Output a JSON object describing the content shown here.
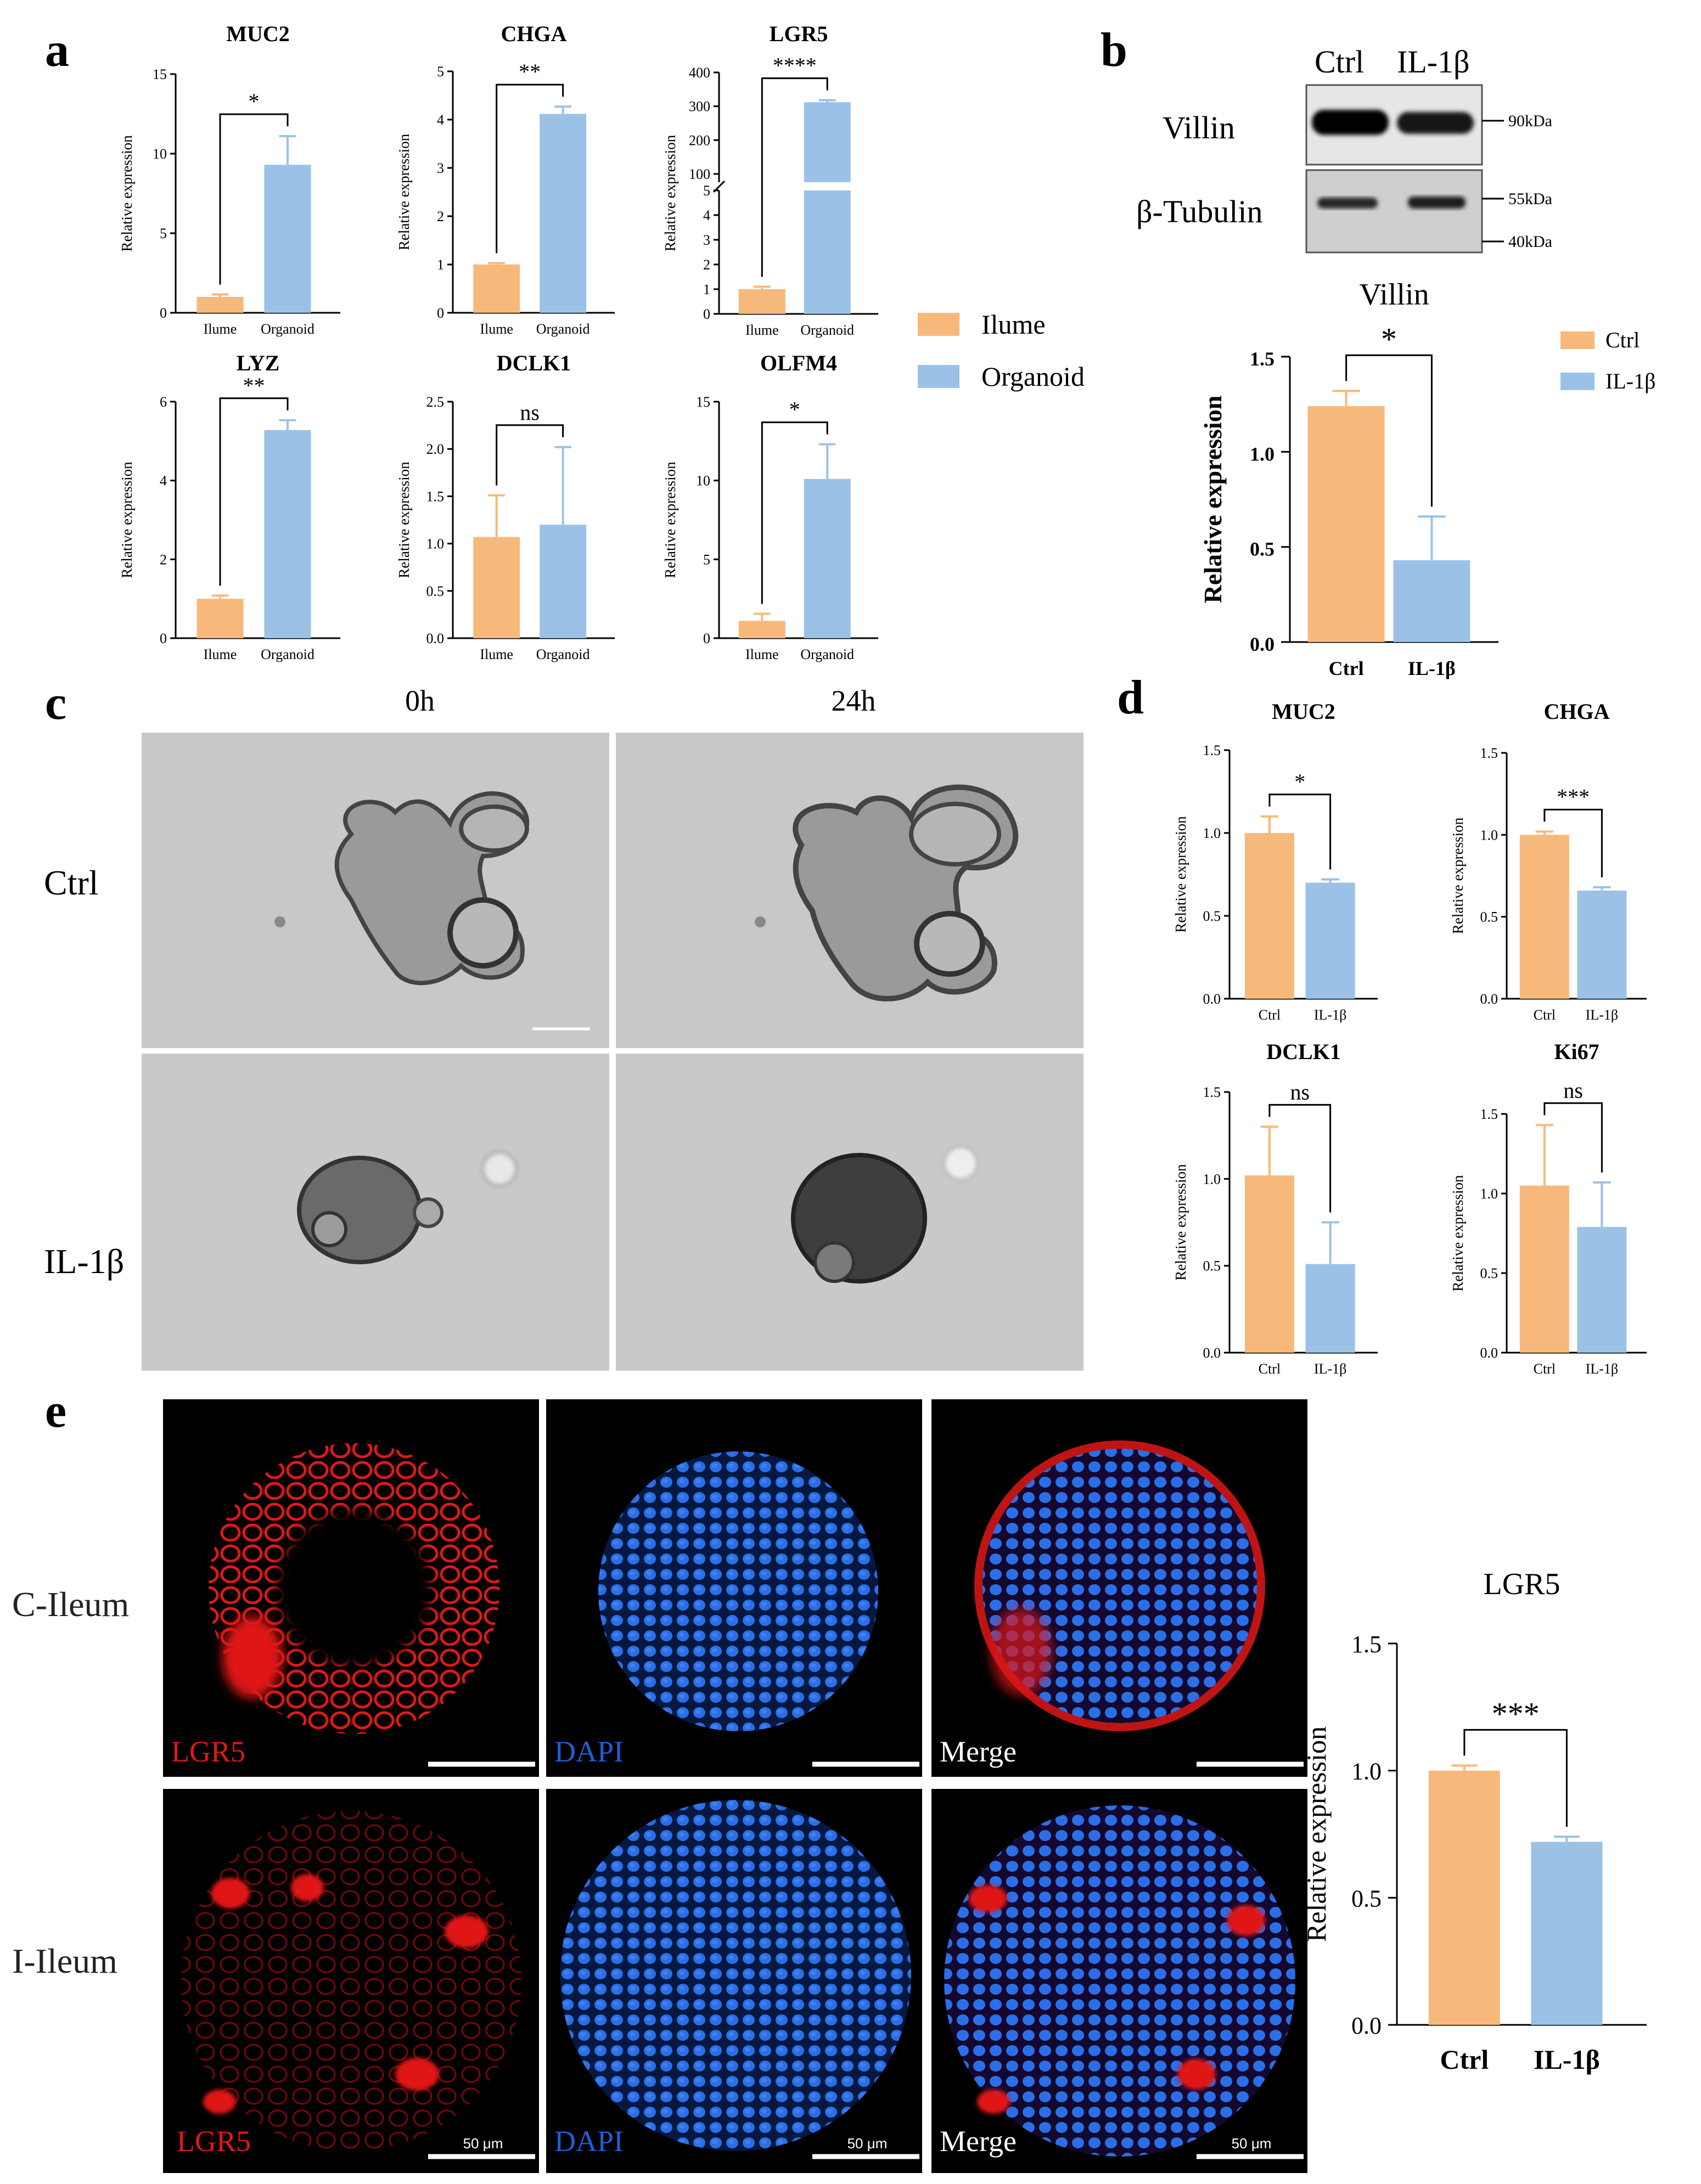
{
  "colors": {
    "ctrl": "#F7B97B",
    "treated": "#9BC2E6",
    "red_channel": "#E01818",
    "blue_channel": "#1E5FD6"
  },
  "panels": {
    "a": "a",
    "b": "b",
    "c": "c",
    "d": "d",
    "e": "e"
  },
  "panel_a": {
    "legend": [
      "Ilume",
      "Organoid"
    ],
    "ylabel": "Relative expression"
  },
  "panel_b": {
    "blot_header": [
      "Ctrl",
      "IL-1β"
    ],
    "blot_rows": [
      "Villin",
      "β-Tubulin"
    ],
    "markers": [
      "90kDa",
      "55kDa",
      "40kDa"
    ],
    "legend": [
      "Ctrl",
      "IL-1β"
    ]
  },
  "panel_c": {
    "timepoints": [
      "0h",
      "24h"
    ],
    "conditions": [
      "Ctrl",
      "IL-1β"
    ],
    "icon": "organoid-brightfield-micrograph"
  },
  "panel_e": {
    "rows": [
      "C-Ileum",
      "I-Ileum"
    ],
    "channels": [
      "LGR5",
      "DAPI",
      "Merge"
    ],
    "scale_bar": "50 μm",
    "icon": "confocal-fluorescence-micrograph"
  },
  "chart_data": [
    {
      "id": "a-muc2",
      "type": "bar",
      "title": "MUC2",
      "categories": [
        "Ilume",
        "Organoid"
      ],
      "values": [
        1.0,
        9.3
      ],
      "errors": [
        0.15,
        1.8
      ],
      "ylim": [
        0,
        15
      ],
      "yticks": [
        0,
        5,
        10,
        15
      ],
      "ylabel": "Relative expression",
      "significance": "*"
    },
    {
      "id": "a-chga",
      "type": "bar",
      "title": "CHGA",
      "categories": [
        "Ilume",
        "Organoid"
      ],
      "values": [
        1.0,
        4.12
      ],
      "errors": [
        0.03,
        0.15
      ],
      "ylim": [
        0,
        5
      ],
      "yticks": [
        0,
        1,
        2,
        3,
        4,
        5
      ],
      "ylabel": "Relative expression",
      "significance": "**"
    },
    {
      "id": "a-lgr5",
      "type": "bar",
      "title": "LGR5",
      "categories": [
        "Ilume",
        "Organoid"
      ],
      "values": [
        1.0,
        312
      ],
      "errors": [
        0.1,
        6
      ],
      "axis_break": true,
      "yticks_lower": [
        0,
        1,
        2,
        3,
        4,
        5
      ],
      "yticks_upper": [
        100,
        200,
        300,
        400
      ],
      "ylabel": "Relative expression",
      "significance": "****"
    },
    {
      "id": "a-lyz",
      "type": "bar",
      "title": "LYZ",
      "categories": [
        "Ilume",
        "Organoid"
      ],
      "values": [
        1.0,
        5.28
      ],
      "errors": [
        0.08,
        0.25
      ],
      "ylim": [
        0,
        6
      ],
      "yticks": [
        0,
        2,
        4,
        6
      ],
      "ylabel": "Relative expression",
      "significance": "**"
    },
    {
      "id": "a-dclk1",
      "type": "bar",
      "title": "DCLK1",
      "categories": [
        "Ilume",
        "Organoid"
      ],
      "values": [
        1.07,
        1.2
      ],
      "errors": [
        0.44,
        0.82
      ],
      "ylim": [
        0,
        2.5
      ],
      "yticks": [
        0.0,
        0.5,
        1.0,
        1.5,
        2.0,
        2.5
      ],
      "ylabel": "Relative expression",
      "significance": "ns"
    },
    {
      "id": "a-olfm4",
      "type": "bar",
      "title": "OLFM4",
      "categories": [
        "Ilume",
        "Organoid"
      ],
      "values": [
        1.1,
        10.1
      ],
      "errors": [
        0.45,
        2.2
      ],
      "ylim": [
        0,
        15
      ],
      "yticks": [
        0,
        5,
        10,
        15
      ],
      "ylabel": "Relative expression",
      "significance": "*"
    },
    {
      "id": "b-villin",
      "type": "bar",
      "title": "Villin",
      "categories": [
        "Ctrl",
        "IL-1β"
      ],
      "values": [
        1.24,
        0.43
      ],
      "errors": [
        0.08,
        0.23
      ],
      "ylim": [
        0,
        1.5
      ],
      "yticks": [
        0.0,
        0.5,
        1.0,
        1.5
      ],
      "ylabel": "Relative expression",
      "significance": "*"
    },
    {
      "id": "d-muc2",
      "type": "bar",
      "title": "MUC2",
      "categories": [
        "Ctrl",
        "IL-1β"
      ],
      "values": [
        1.0,
        0.7
      ],
      "errors": [
        0.1,
        0.02
      ],
      "ylim": [
        0,
        1.5
      ],
      "yticks": [
        0.0,
        0.5,
        1.0,
        1.5
      ],
      "ylabel": "Relative expression",
      "significance": "*"
    },
    {
      "id": "d-chga",
      "type": "bar",
      "title": "CHGA",
      "categories": [
        "Ctrl",
        "IL-1β"
      ],
      "values": [
        1.0,
        0.66
      ],
      "errors": [
        0.02,
        0.02
      ],
      "ylim": [
        0,
        1.5
      ],
      "yticks": [
        0.0,
        0.5,
        1.0,
        1.5
      ],
      "ylabel": "Relative expression",
      "significance": "***"
    },
    {
      "id": "d-dclk1",
      "type": "bar",
      "title": "DCLK1",
      "categories": [
        "Ctrl",
        "IL-1β"
      ],
      "values": [
        1.02,
        0.51
      ],
      "errors": [
        0.28,
        0.24
      ],
      "ylim": [
        0,
        1.5
      ],
      "yticks": [
        0.0,
        0.5,
        1.0,
        1.5
      ],
      "ylabel": "Relative expression",
      "significance": "ns"
    },
    {
      "id": "d-ki67",
      "type": "bar",
      "title": "Ki67",
      "categories": [
        "Ctrl",
        "IL-1β"
      ],
      "values": [
        1.05,
        0.79
      ],
      "errors": [
        0.38,
        0.28
      ],
      "ylim": [
        0,
        1.5
      ],
      "yticks": [
        0.0,
        0.5,
        1.0,
        1.5
      ],
      "ylabel": "Relative expression",
      "significance": "ns"
    },
    {
      "id": "e-lgr5",
      "type": "bar",
      "title": "LGR5",
      "categories": [
        "Ctrl",
        "IL-1β"
      ],
      "values": [
        1.0,
        0.72
      ],
      "errors": [
        0.02,
        0.02
      ],
      "ylim": [
        0,
        1.5
      ],
      "yticks": [
        0.0,
        0.5,
        1.0,
        1.5
      ],
      "ylabel": "Relative expression",
      "significance": "***"
    }
  ]
}
